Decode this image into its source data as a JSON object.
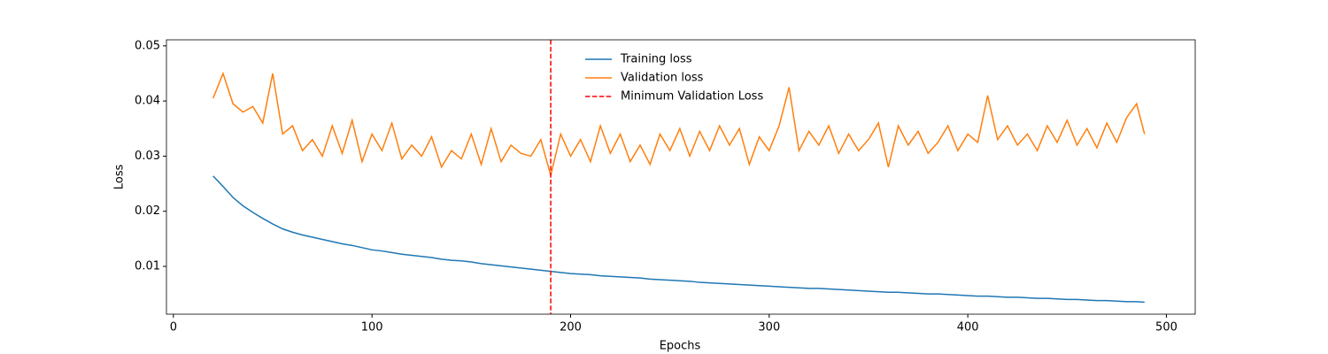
{
  "chart_data": {
    "type": "line",
    "xlabel": "Epochs",
    "ylabel": "Loss",
    "x": [
      20,
      25,
      30,
      35,
      40,
      45,
      50,
      55,
      60,
      65,
      70,
      75,
      80,
      85,
      90,
      95,
      100,
      105,
      110,
      115,
      120,
      125,
      130,
      135,
      140,
      145,
      150,
      155,
      160,
      165,
      170,
      175,
      180,
      185,
      190,
      195,
      200,
      205,
      210,
      215,
      220,
      225,
      230,
      235,
      240,
      245,
      250,
      255,
      260,
      265,
      270,
      275,
      280,
      285,
      290,
      295,
      300,
      305,
      310,
      315,
      320,
      325,
      330,
      335,
      340,
      345,
      350,
      355,
      360,
      365,
      370,
      375,
      380,
      385,
      390,
      395,
      400,
      405,
      410,
      415,
      420,
      425,
      430,
      435,
      440,
      445,
      450,
      455,
      460,
      465,
      470,
      475,
      480,
      485,
      489
    ],
    "series": [
      {
        "name": "Training loss",
        "color": "#1f77b4",
        "values": [
          0.0264,
          0.0245,
          0.0225,
          0.021,
          0.0198,
          0.0187,
          0.0177,
          0.0168,
          0.0162,
          0.0157,
          0.0153,
          0.0149,
          0.0145,
          0.0141,
          0.0138,
          0.0134,
          0.013,
          0.0128,
          0.0125,
          0.0122,
          0.012,
          0.0118,
          0.0116,
          0.0113,
          0.0111,
          0.011,
          0.0108,
          0.0105,
          0.0103,
          0.0101,
          0.0099,
          0.0097,
          0.0095,
          0.0093,
          0.0091,
          0.0089,
          0.0087,
          0.0086,
          0.0085,
          0.0083,
          0.0082,
          0.0081,
          0.008,
          0.0079,
          0.0077,
          0.0076,
          0.0075,
          0.0074,
          0.0073,
          0.0071,
          0.007,
          0.0069,
          0.0068,
          0.0067,
          0.0066,
          0.0065,
          0.0064,
          0.0063,
          0.0062,
          0.0061,
          0.006,
          0.006,
          0.0059,
          0.0058,
          0.0057,
          0.0056,
          0.0055,
          0.0054,
          0.0053,
          0.0053,
          0.0052,
          0.0051,
          0.005,
          0.005,
          0.0049,
          0.0048,
          0.0047,
          0.0046,
          0.0046,
          0.0045,
          0.0044,
          0.0044,
          0.0043,
          0.0042,
          0.0042,
          0.0041,
          0.004,
          0.004,
          0.0039,
          0.0038,
          0.0038,
          0.0037,
          0.0036,
          0.0036,
          0.0035
        ]
      },
      {
        "name": "Validation loss",
        "color": "#ff7f0e",
        "values": [
          0.0405,
          0.045,
          0.0395,
          0.038,
          0.039,
          0.036,
          0.045,
          0.034,
          0.0355,
          0.031,
          0.033,
          0.03,
          0.0355,
          0.0305,
          0.0365,
          0.029,
          0.034,
          0.031,
          0.036,
          0.0295,
          0.032,
          0.03,
          0.0335,
          0.028,
          0.031,
          0.0295,
          0.034,
          0.0285,
          0.035,
          0.029,
          0.032,
          0.0305,
          0.03,
          0.033,
          0.0265,
          0.034,
          0.03,
          0.033,
          0.029,
          0.0355,
          0.0305,
          0.034,
          0.029,
          0.032,
          0.0285,
          0.034,
          0.031,
          0.035,
          0.03,
          0.0345,
          0.031,
          0.0355,
          0.032,
          0.035,
          0.0285,
          0.0335,
          0.031,
          0.0355,
          0.0425,
          0.031,
          0.0345,
          0.032,
          0.0355,
          0.0305,
          0.034,
          0.031,
          0.033,
          0.036,
          0.028,
          0.0355,
          0.032,
          0.0345,
          0.0305,
          0.0325,
          0.0355,
          0.031,
          0.034,
          0.0325,
          0.041,
          0.033,
          0.0355,
          0.032,
          0.034,
          0.031,
          0.0355,
          0.0325,
          0.0365,
          0.032,
          0.035,
          0.0315,
          0.036,
          0.0325,
          0.037,
          0.0395,
          0.034
        ]
      }
    ],
    "vline": {
      "name": "Minimum Validation Loss",
      "x": 190,
      "color": "#ff0000",
      "linestyle": "dashed"
    },
    "xlim": [
      -3.5,
      514.5
    ],
    "xticks": [
      0,
      100,
      200,
      300,
      400,
      500
    ],
    "ylim": [
      0.00133,
      0.0511
    ],
    "yticks": [
      0.01,
      0.02,
      0.03,
      0.04,
      0.05
    ],
    "legend": "upper center"
  }
}
